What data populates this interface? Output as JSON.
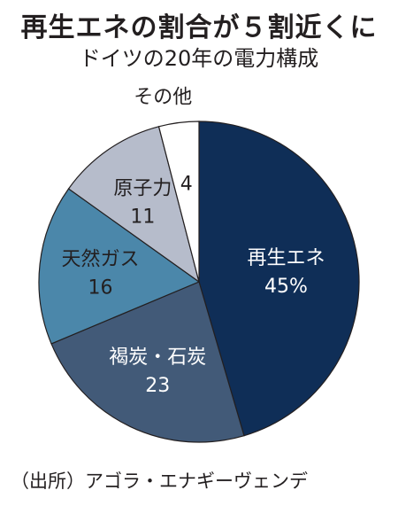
{
  "title": "再生エネの割合が５割近くに",
  "subtitle": "ドイツの20年の電力構成",
  "source": "（出所）アゴラ・エナギーヴェンデ",
  "chart_data": {
    "type": "pie",
    "title": "再生エネの割合が５割近くに",
    "subtitle": "ドイツの20年の電力構成",
    "unit": "%",
    "slices": [
      {
        "label": "再生エネ",
        "value": 45,
        "value_label": "45%",
        "color": "#0f2e57",
        "text_color": "#ffffff"
      },
      {
        "label": "褐炭・石炭",
        "value": 23,
        "value_label": "23",
        "color": "#425a78",
        "text_color": "#ffffff"
      },
      {
        "label": "天然ガス",
        "value": 16,
        "value_label": "16",
        "color": "#4b87aa",
        "text_color": "#231f20"
      },
      {
        "label": "原子力",
        "value": 11,
        "value_label": "11",
        "color": "#b6bccb",
        "text_color": "#231f20"
      },
      {
        "label": "その他",
        "value": 4,
        "value_label": "4",
        "color": "#ffffff",
        "text_color": "#231f20"
      }
    ]
  }
}
